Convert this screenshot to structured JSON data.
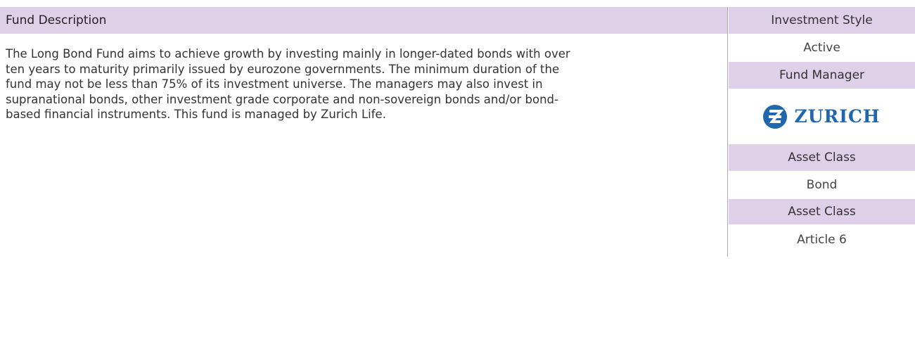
{
  "description": {
    "heading": "Fund Description",
    "text": "The Long Bond Fund aims to achieve growth by investing mainly in longer-dated bonds with over ten years to maturity primarily issued by eurozone governments. The minimum duration of the fund may not be less than 75% of its investment universe. The managers may also invest in supranational bonds, other investment grade corporate and non-sovereign bonds and/or bond-based financial instruments. This fund is managed by Zurich Life."
  },
  "sidebar": {
    "investment_style": {
      "label": "Investment Style",
      "value": "Active"
    },
    "fund_manager": {
      "label": "Fund Manager",
      "logo": "ZURICH"
    },
    "asset_class": {
      "label": "Asset Class",
      "value": "Bond"
    },
    "sfdr": {
      "label": "Asset Class",
      "value": "Article 6"
    }
  }
}
